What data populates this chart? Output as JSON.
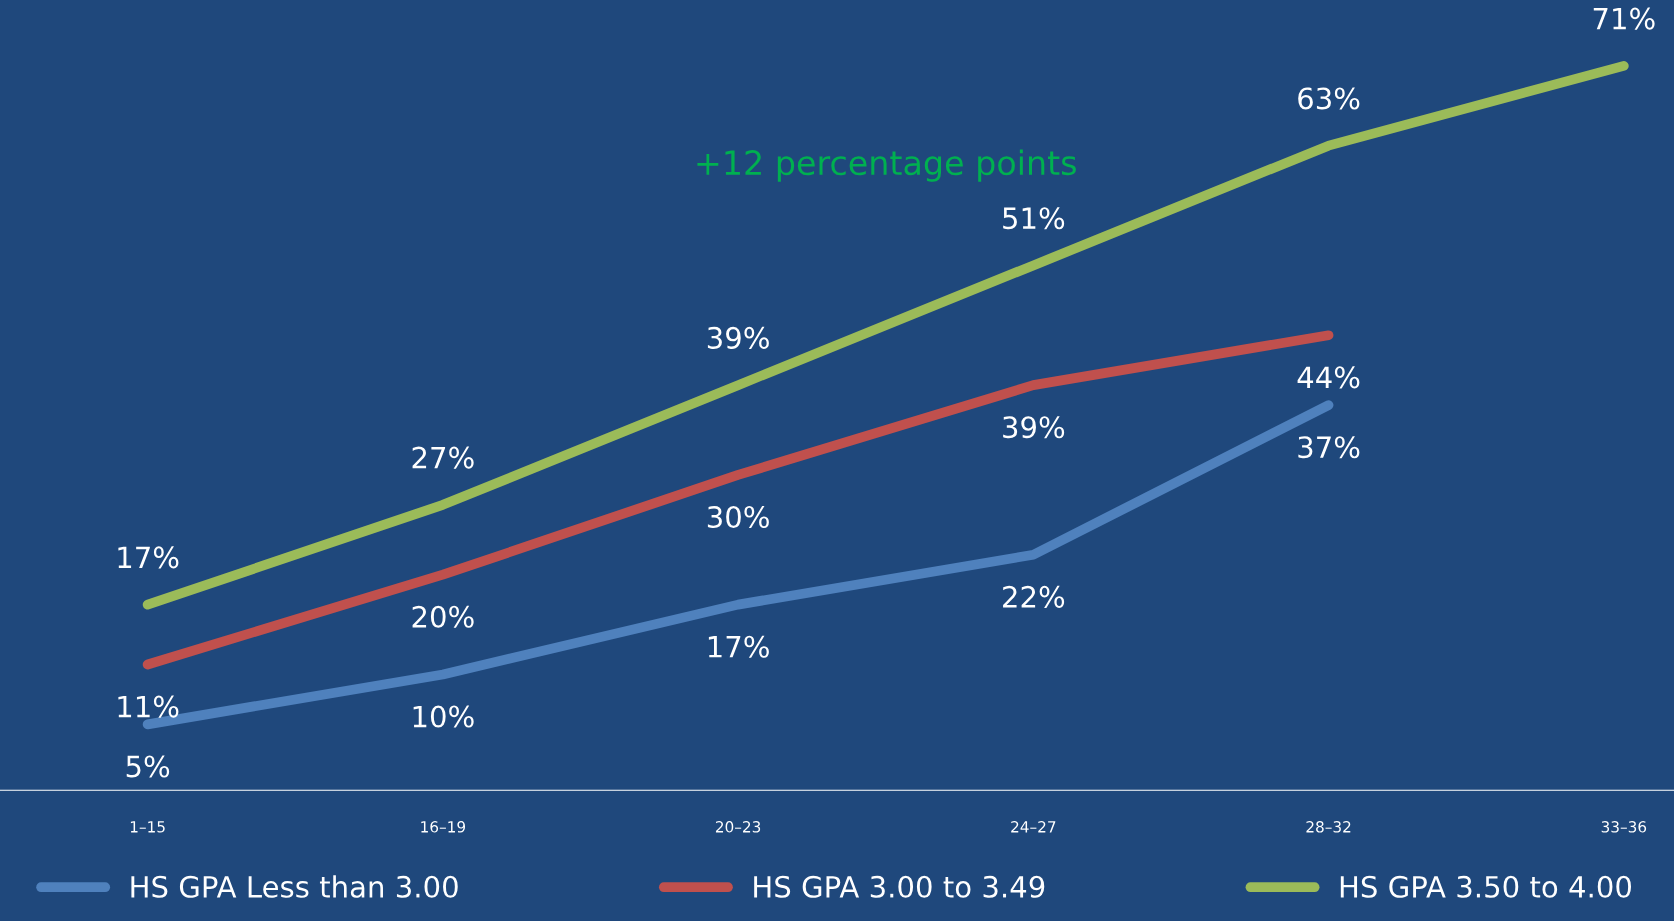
{
  "chart_data": {
    "type": "line",
    "categories": [
      "1–15",
      "16–19",
      "20–23",
      "24–27",
      "28–32",
      "33–36"
    ],
    "series": [
      {
        "name": "HS GPA Less than 3.00",
        "color": "#4f81bd",
        "values": [
          5,
          10,
          17,
          22,
          37,
          null
        ],
        "value_labels": [
          "5%",
          "10%",
          "17%",
          "22%",
          "37%",
          null
        ]
      },
      {
        "name": "HS GPA 3.00 to 3.49",
        "color": "#c0504d",
        "values": [
          11,
          20,
          30,
          39,
          44,
          null
        ],
        "value_labels": [
          "11%",
          "20%",
          "30%",
          "39%",
          "44%",
          null
        ]
      },
      {
        "name": "HS GPA 3.50 to 4.00",
        "color": "#9bbb59",
        "values": [
          17,
          27,
          39,
          51,
          63,
          71
        ],
        "value_labels": [
          "17%",
          "27%",
          "39%",
          "51%",
          "63%",
          "71%"
        ]
      }
    ],
    "tick_labels": "x",
    "grid": false,
    "legend": "bottom",
    "marker": "none",
    "line_style": "solid",
    "annotations": [
      "+12 percentage points"
    ]
  }
}
